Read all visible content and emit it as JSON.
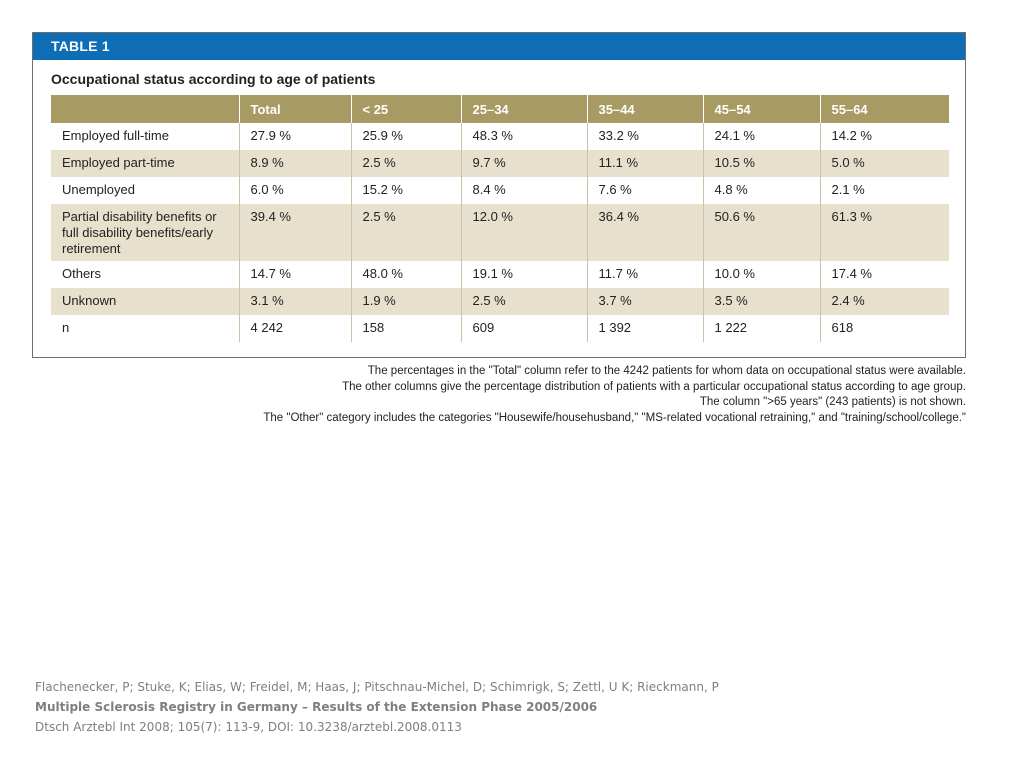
{
  "table": {
    "label": "TABLE 1",
    "title": "Occupational status according to age of patients",
    "columns": [
      "",
      "Total",
      "< 25",
      "25–34",
      "35–44",
      "45–54",
      "55–64"
    ],
    "rows": [
      {
        "label": "Employed full-time",
        "values": [
          "27.9 %",
          "25.9 %",
          "48.3 %",
          "33.2 %",
          "24.1 %",
          "14.2 %"
        ],
        "shaded": false
      },
      {
        "label": "Employed part-time",
        "values": [
          "8.9 %",
          "2.5 %",
          "9.7 %",
          "11.1 %",
          "10.5 %",
          "5.0 %"
        ],
        "shaded": true
      },
      {
        "label": "Unemployed",
        "values": [
          "6.0 %",
          "15.2 %",
          "8.4 %",
          "7.6 %",
          "4.8 %",
          "2.1 %"
        ],
        "shaded": false
      },
      {
        "label": "Partial disability benefits or full disability benefits/early retirement",
        "values": [
          "39.4 %",
          "2.5 %",
          "12.0 %",
          "36.4 %",
          "50.6 %",
          "61.3 %"
        ],
        "shaded": true
      },
      {
        "label": "Others",
        "values": [
          "14.7 %",
          "48.0 %",
          "19.1 %",
          "11.7 %",
          "10.0 %",
          "17.4 %"
        ],
        "shaded": false
      },
      {
        "label": "Unknown",
        "values": [
          "3.1 %",
          "1.9 %",
          "2.5 %",
          "3.7 %",
          "3.5 %",
          "2.4 %"
        ],
        "shaded": true
      },
      {
        "label": "n",
        "values": [
          "4 242",
          "158",
          "609",
          "1 392",
          "1 222",
          "618"
        ],
        "shaded": false
      }
    ]
  },
  "notes": [
    "The percentages in the \"Total\" column refer to the 4242 patients for whom data on occupational status were available.",
    "The other columns give the percentage distribution of patients with a particular occupational status according to age group.",
    "The column \">65 years\" (243 patients) is not shown.",
    "The \"Other\" category includes the categories \"Housewife/househusband,\" \"MS-related vocational retraining,\" and \"training/school/college.\""
  ],
  "citation": {
    "authors": "Flachenecker, P; Stuke, K; Elias, W; Freidel, M; Haas, J; Pitschnau-Michel, D; Schimrigk, S; Zettl, U K; Rieckmann, P",
    "title": "Multiple Sclerosis Registry in Germany – Results of the Extension Phase 2005/2006",
    "source": "Dtsch Arztebl Int 2008; 105(7): 113-9, DOI: 10.3238/arztebl.2008.0113"
  },
  "colors": {
    "header_bar": "#0f6db5",
    "column_header": "#a79a62",
    "shaded_row": "#e6e0cd"
  }
}
